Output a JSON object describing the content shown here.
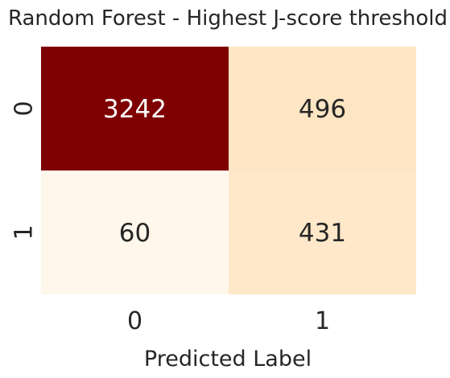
{
  "chart_data": {
    "type": "heatmap",
    "title": "Random Forest - Highest J-score threshold",
    "xlabel": "Predicted Label",
    "ylabel": "",
    "x_categories": [
      "0",
      "1"
    ],
    "y_categories": [
      "0",
      "1"
    ],
    "values": [
      [
        3242,
        496
      ],
      [
        60,
        431
      ]
    ],
    "colormap": "OrRd",
    "colors": {
      "low": "#fff7ec",
      "mid": "#fee8c8",
      "high": "#7f0000",
      "text_dark": "#262626",
      "text_light": "#ffffff"
    }
  }
}
